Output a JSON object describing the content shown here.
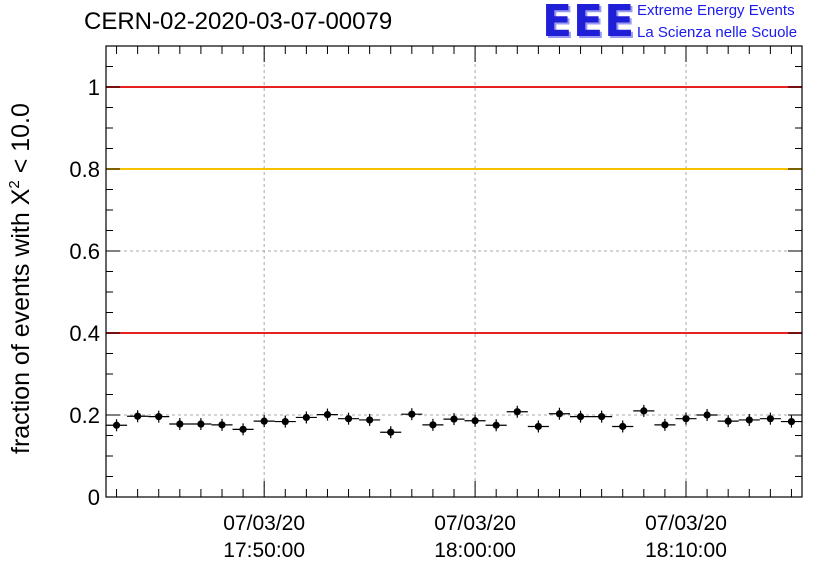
{
  "chart_data": {
    "type": "scatter",
    "title": "CERN-02-2020-03-07-00079",
    "ylabel_main": "fraction of events with X",
    "ylabel_sup": "2",
    "ylabel_tail": " < 10.0",
    "ylim": [
      0,
      1.1
    ],
    "xlim_minutes": [
      -18.5,
      14.5
    ],
    "grid": true,
    "yticks": [
      {
        "v": 0,
        "label": "0"
      },
      {
        "v": 0.2,
        "label": "0.2"
      },
      {
        "v": 0.4,
        "label": "0.4"
      },
      {
        "v": 0.6,
        "label": "0.6"
      },
      {
        "v": 0.8,
        "label": "0.8"
      },
      {
        "v": 1,
        "label": "1"
      }
    ],
    "xticks": [
      {
        "m": -11,
        "date": "07/03/20",
        "time": "17:50:00"
      },
      {
        "m": -1,
        "date": "07/03/20",
        "time": "18:00:00"
      },
      {
        "m": 9,
        "date": "07/03/20",
        "time": "18:10:00"
      }
    ],
    "reference_lines": [
      {
        "y": 1.0,
        "color": "#e8201e"
      },
      {
        "y": 0.8,
        "color": "#f6c200"
      },
      {
        "y": 0.4,
        "color": "#e8201e"
      }
    ],
    "x_minutes": [
      -18,
      -17,
      -16,
      -15,
      -14,
      -13,
      -12,
      -11,
      -10,
      -9,
      -8,
      -7,
      -6,
      -5,
      -4,
      -3,
      -2,
      -1,
      0,
      1,
      2,
      3,
      4,
      5,
      6,
      7,
      8,
      9,
      10,
      11,
      12,
      13,
      14
    ],
    "values": [
      0.175,
      0.197,
      0.196,
      0.178,
      0.178,
      0.176,
      0.165,
      0.185,
      0.184,
      0.194,
      0.201,
      0.191,
      0.188,
      0.158,
      0.202,
      0.176,
      0.19,
      0.186,
      0.175,
      0.208,
      0.172,
      0.203,
      0.196,
      0.196,
      0.172,
      0.21,
      0.176,
      0.191,
      0.2,
      0.185,
      0.188,
      0.191,
      0.184
    ],
    "marker_color": "#000000"
  },
  "logo": {
    "letters": "EEE",
    "line1": "Extreme Energy Events",
    "line2": "La Scienza nelle Scuole"
  }
}
